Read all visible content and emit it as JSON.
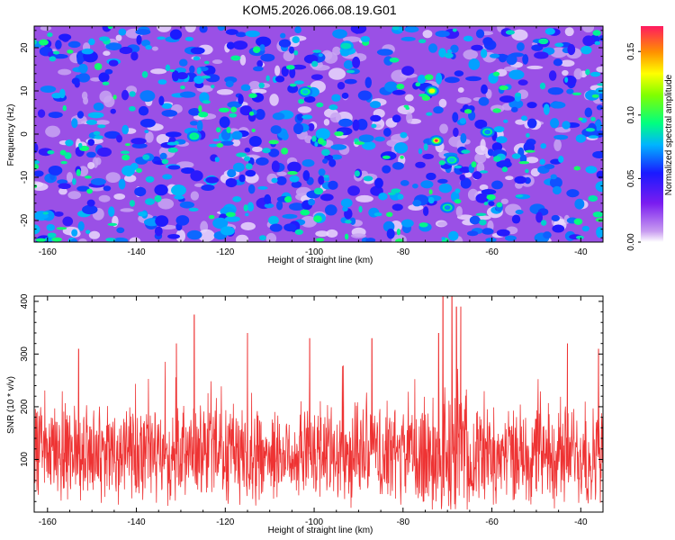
{
  "title": "KOM5.2026.066.08.19.G01",
  "chart_data": [
    {
      "type": "heatmap",
      "name": "spectrogram",
      "xlabel": "Height of straight line (km)",
      "ylabel": "Frequency (Hz)",
      "xlim": [
        -163,
        -35
      ],
      "ylim": [
        -25,
        25
      ],
      "xticks": [
        -160,
        -140,
        -120,
        -100,
        -80,
        -60,
        -40
      ],
      "yticks": [
        -20,
        -10,
        0,
        10,
        20
      ],
      "colorbar": {
        "label": "Normalized spectral amplitude",
        "range": [
          0,
          0.17
        ],
        "ticks": [
          "0.00",
          "0.05",
          "0.10",
          "0.15"
        ]
      },
      "peaks": [
        {
          "x": -72.5,
          "y": -1.5,
          "value": 0.17
        },
        {
          "x": -73.5,
          "y": 10,
          "value": 0.13
        },
        {
          "x": -127,
          "y": -0.5,
          "value": 0.09
        },
        {
          "x": -69,
          "y": -6,
          "value": 0.08
        },
        {
          "x": -102,
          "y": 9.8,
          "value": 0.08
        },
        {
          "x": -70,
          "y": -17,
          "value": 0.07
        },
        {
          "x": -61,
          "y": 0.5,
          "value": 0.07
        }
      ]
    },
    {
      "type": "line",
      "name": "snr",
      "xlabel": "Height of straight line (km)",
      "ylabel": "SNR (10 * v/v)",
      "xlim": [
        -163,
        -35
      ],
      "ylim": [
        0,
        410
      ],
      "xticks": [
        -160,
        -140,
        -120,
        -100,
        -80,
        -60,
        -40
      ],
      "yticks": [
        100,
        200,
        300,
        400
      ],
      "color": "#ee3333",
      "baseline": 110,
      "spikes": [
        {
          "x": -127,
          "y": 375
        },
        {
          "x": -71,
          "y": 410
        },
        {
          "x": -69,
          "y": 410
        },
        {
          "x": -68,
          "y": 390
        },
        {
          "x": -67,
          "y": 390
        },
        {
          "x": -72,
          "y": 340
        },
        {
          "x": -87,
          "y": 330
        },
        {
          "x": -153,
          "y": 310
        },
        {
          "x": -131,
          "y": 320
        },
        {
          "x": -115,
          "y": 340
        },
        {
          "x": -101,
          "y": 330
        },
        {
          "x": -43,
          "y": 320
        },
        {
          "x": -36,
          "y": 310
        }
      ]
    }
  ]
}
